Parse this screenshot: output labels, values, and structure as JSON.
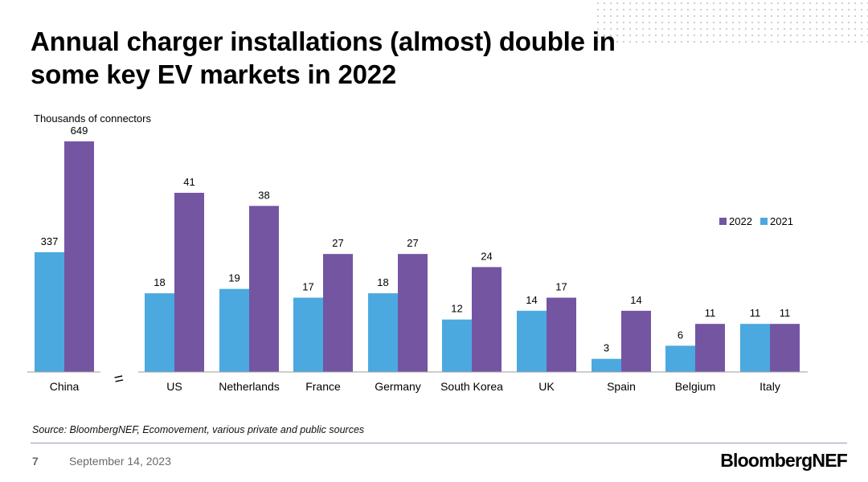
{
  "slide": {
    "title": "Annual charger installations (almost) double in some key EV markets in 2022",
    "source": "Source: BloombergNEF, Ecomovement, various private and public sources",
    "page_number": "7",
    "date": "September 14, 2023",
    "brand": "BloombergNEF"
  },
  "colors": {
    "series_2022": "#7455a2",
    "series_2021": "#4ba9e0",
    "axis": "#9b9b9b"
  },
  "chart_data": {
    "type": "bar",
    "unit_label": "Thousands of connectors",
    "categories": [
      "China",
      "US",
      "Netherlands",
      "France",
      "Germany",
      "South Korea",
      "UK",
      "Spain",
      "Belgium",
      "Italy"
    ],
    "series": [
      {
        "name": "2021",
        "values": [
          337,
          18,
          19,
          17,
          18,
          12,
          14,
          3,
          6,
          11
        ]
      },
      {
        "name": "2022",
        "values": [
          649,
          41,
          38,
          27,
          27,
          24,
          17,
          14,
          11,
          11
        ]
      }
    ],
    "legend": {
      "position": "right",
      "order": [
        "2022",
        "2021"
      ]
    },
    "axis_break": {
      "after_category": "China",
      "symbol": "="
    },
    "scale": {
      "China": [
        0,
        649
      ],
      "others": [
        0,
        41
      ]
    },
    "grid": false
  }
}
